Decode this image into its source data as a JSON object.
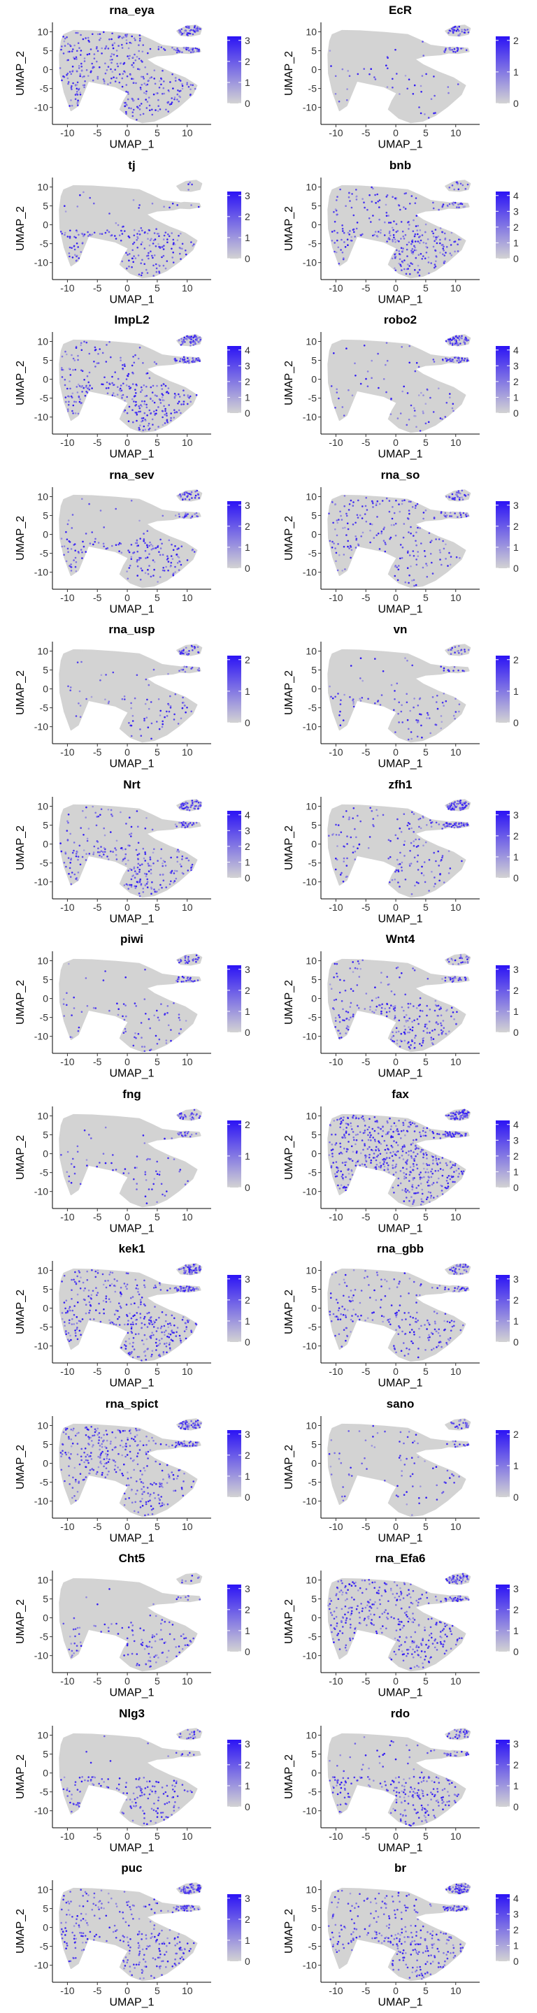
{
  "chart_data": {
    "type": "scatter",
    "layout": "grid of feature plots, 2 columns x 13 rows",
    "xlabel": "UMAP_1",
    "ylabel": "UMAP_2",
    "x_ticks": [
      -10,
      -5,
      0,
      5,
      10
    ],
    "y_ticks": [
      10,
      5,
      0,
      -5,
      -10
    ],
    "xlim": [
      -12.5,
      14
    ],
    "ylim": [
      -14.5,
      12.5
    ],
    "color_low": "#d3d3d3",
    "color_high": "#2b13f5",
    "grid": false,
    "legend": "right, continuous colorbar",
    "panels": [
      {
        "gene": "rna_eya",
        "scale_max": 3,
        "ticks": [
          3,
          2,
          1,
          0
        ],
        "regions": {
          "left": 0.55,
          "stem": 0.3,
          "lower": 0.6,
          "islands": 0.7
        }
      },
      {
        "gene": "EcR",
        "scale_max": 2,
        "ticks": [
          2,
          1,
          0
        ],
        "regions": {
          "left": 0.05,
          "stem": 0.05,
          "lower": 0.12,
          "islands": 0.5
        }
      },
      {
        "gene": "tj",
        "scale_max": 3,
        "ticks": [
          3,
          2,
          1,
          0
        ],
        "regions": {
          "left": 0.04,
          "stem": 0.05,
          "lower": 0.55,
          "islands": 0.1
        }
      },
      {
        "gene": "bnb",
        "scale_max": 4,
        "ticks": [
          4,
          3,
          2,
          1,
          0
        ],
        "regions": {
          "left": 0.25,
          "stem": 0.3,
          "lower": 0.7,
          "islands": 0.3
        }
      },
      {
        "gene": "ImpL2",
        "scale_max": 4,
        "ticks": [
          4,
          3,
          2,
          1,
          0
        ],
        "regions": {
          "left": 0.25,
          "stem": 0.25,
          "lower": 0.7,
          "islands": 0.85
        }
      },
      {
        "gene": "robo2",
        "scale_max": 4,
        "ticks": [
          4,
          3,
          2,
          1,
          0
        ],
        "regions": {
          "left": 0.06,
          "stem": 0.1,
          "lower": 0.15,
          "islands": 0.75
        }
      },
      {
        "gene": "rna_sev",
        "scale_max": 3,
        "ticks": [
          3,
          2,
          1,
          0
        ],
        "regions": {
          "left": 0.06,
          "stem": 0.1,
          "lower": 0.45,
          "islands": 0.5
        }
      },
      {
        "gene": "rna_so",
        "scale_max": 3,
        "ticks": [
          3,
          2,
          1,
          0
        ],
        "regions": {
          "left": 0.3,
          "stem": 0.2,
          "lower": 0.3,
          "islands": 0.4
        }
      },
      {
        "gene": "rna_usp",
        "scale_max": 2,
        "ticks": [
          2,
          1,
          0
        ],
        "regions": {
          "left": 0.06,
          "stem": 0.05,
          "lower": 0.2,
          "islands": 0.4
        }
      },
      {
        "gene": "vn",
        "scale_max": 2,
        "ticks": [
          2,
          1,
          0
        ],
        "regions": {
          "left": 0.06,
          "stem": 0.05,
          "lower": 0.25,
          "islands": 0.2
        }
      },
      {
        "gene": "Nrt",
        "scale_max": 4,
        "ticks": [
          4,
          3,
          2,
          1,
          0
        ],
        "regions": {
          "left": 0.15,
          "stem": 0.1,
          "lower": 0.65,
          "islands": 0.6
        }
      },
      {
        "gene": "zfh1",
        "scale_max": 3,
        "ticks": [
          3,
          2,
          1,
          0
        ],
        "regions": {
          "left": 0.2,
          "stem": 0.3,
          "lower": 0.3,
          "islands": 0.9
        }
      },
      {
        "gene": "piwi",
        "scale_max": 3,
        "ticks": [
          3,
          2,
          1,
          0
        ],
        "regions": {
          "left": 0.05,
          "stem": 0.05,
          "lower": 0.2,
          "islands": 0.4
        }
      },
      {
        "gene": "Wnt4",
        "scale_max": 3,
        "ticks": [
          3,
          2,
          1,
          0
        ],
        "regions": {
          "left": 0.12,
          "stem": 0.1,
          "lower": 0.55,
          "islands": 0.4
        }
      },
      {
        "gene": "fng",
        "scale_max": 2,
        "ticks": [
          2,
          1,
          0
        ],
        "regions": {
          "left": 0.04,
          "stem": 0.1,
          "lower": 0.2,
          "islands": 0.4
        }
      },
      {
        "gene": "fax",
        "scale_max": 4,
        "ticks": [
          4,
          3,
          2,
          1,
          0
        ],
        "regions": {
          "left": 0.75,
          "stem": 0.7,
          "lower": 0.8,
          "islands": 0.95
        }
      },
      {
        "gene": "kek1",
        "scale_max": 3,
        "ticks": [
          3,
          2,
          1,
          0
        ],
        "regions": {
          "left": 0.35,
          "stem": 0.3,
          "lower": 0.7,
          "islands": 0.85
        }
      },
      {
        "gene": "rna_gbb",
        "scale_max": 3,
        "ticks": [
          3,
          2,
          1,
          0
        ],
        "regions": {
          "left": 0.2,
          "stem": 0.2,
          "lower": 0.4,
          "islands": 0.5
        }
      },
      {
        "gene": "rna_spict",
        "scale_max": 3,
        "ticks": [
          3,
          2,
          1,
          0
        ],
        "regions": {
          "left": 0.55,
          "stem": 0.35,
          "lower": 0.45,
          "islands": 0.75
        }
      },
      {
        "gene": "sano",
        "scale_max": 2,
        "ticks": [
          2,
          1,
          0
        ],
        "regions": {
          "left": 0.1,
          "stem": 0.1,
          "lower": 0.15,
          "islands": 0.3
        }
      },
      {
        "gene": "Cht5",
        "scale_max": 3,
        "ticks": [
          3,
          2,
          1,
          0
        ],
        "regions": {
          "left": 0.03,
          "stem": 0.05,
          "lower": 0.35,
          "islands": 0.15
        }
      },
      {
        "gene": "rna_Efa6",
        "scale_max": 3,
        "ticks": [
          3,
          2,
          1,
          0
        ],
        "regions": {
          "left": 0.6,
          "stem": 0.4,
          "lower": 0.55,
          "islands": 0.7
        }
      },
      {
        "gene": "Nlg3",
        "scale_max": 3,
        "ticks": [
          3,
          2,
          1,
          0
        ],
        "regions": {
          "left": 0.03,
          "stem": 0.05,
          "lower": 0.5,
          "islands": 0.15
        }
      },
      {
        "gene": "rdo",
        "scale_max": 3,
        "ticks": [
          3,
          2,
          1,
          0
        ],
        "regions": {
          "left": 0.1,
          "stem": 0.2,
          "lower": 0.6,
          "islands": 0.4
        }
      },
      {
        "gene": "puc",
        "scale_max": 3,
        "ticks": [
          3,
          2,
          1,
          0
        ],
        "regions": {
          "left": 0.3,
          "stem": 0.3,
          "lower": 0.5,
          "islands": 0.85
        }
      },
      {
        "gene": "br",
        "scale_max": 4,
        "ticks": [
          4,
          3,
          2,
          1,
          0
        ],
        "regions": {
          "left": 0.35,
          "stem": 0.3,
          "lower": 0.55,
          "islands": 0.85
        }
      }
    ]
  }
}
